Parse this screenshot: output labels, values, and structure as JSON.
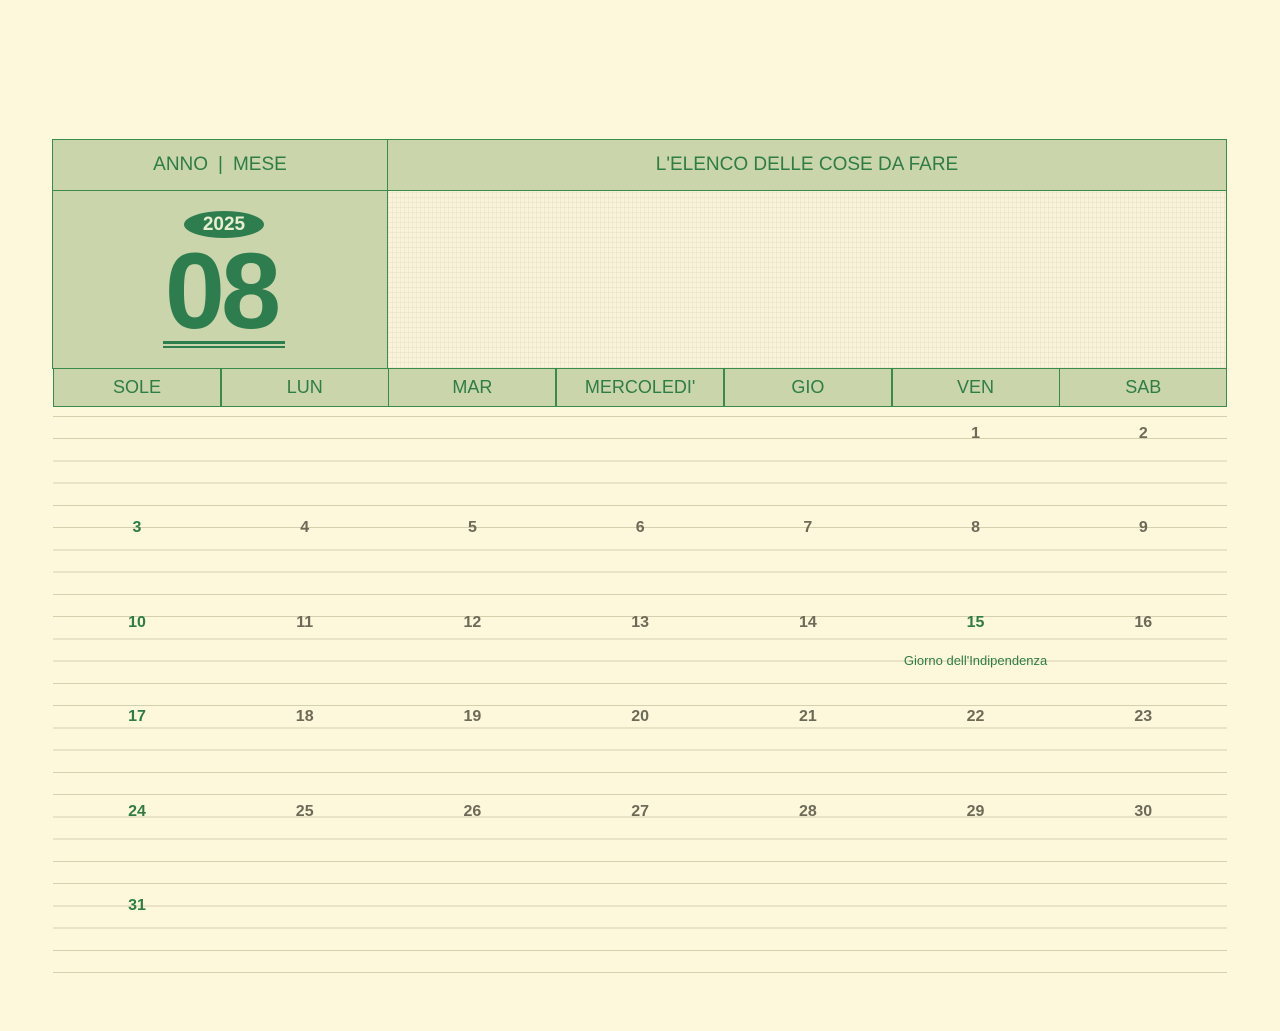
{
  "header": {
    "year_label": "ANNO",
    "separator": "|",
    "month_label": "MESE",
    "todo_title": "L'ELENCO DELLE COSE DA FARE"
  },
  "date": {
    "year": "2025",
    "month": "08"
  },
  "weekdays": [
    "SOLE",
    "LUN",
    "MAR",
    "MERCOLEDI'",
    "GIO",
    "VEN",
    "SAB"
  ],
  "weeks": [
    [
      "",
      "",
      "",
      "",
      "",
      "1",
      "2"
    ],
    [
      "3",
      "4",
      "5",
      "6",
      "7",
      "8",
      "9"
    ],
    [
      "10",
      "11",
      "12",
      "13",
      "14",
      "15",
      "16"
    ],
    [
      "17",
      "18",
      "19",
      "20",
      "21",
      "22",
      "23"
    ],
    [
      "24",
      "25",
      "26",
      "27",
      "28",
      "29",
      "30"
    ],
    [
      "31",
      "",
      "",
      "",
      "",
      "",
      ""
    ]
  ],
  "holidays": [
    {
      "day": "15",
      "name": "Giorno dell'Indipendenza"
    }
  ],
  "colors": {
    "accent": "#2e7d45",
    "header_bg": "#cad5ab",
    "page_bg": "#fdf7dc"
  }
}
